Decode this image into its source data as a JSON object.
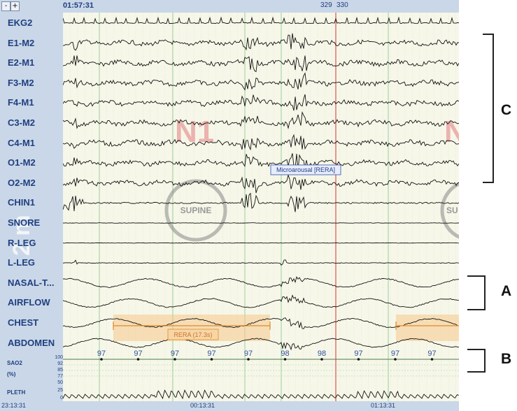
{
  "toolbar": {
    "minus_label": "-",
    "plus_label": "+",
    "start_time": "01:57:31",
    "epoch_a": "329",
    "epoch_b": "330"
  },
  "channels": [
    {
      "label": "EKG2",
      "kind": "ekg"
    },
    {
      "label": "E1-M2",
      "kind": "eeg"
    },
    {
      "label": "E2-M1",
      "kind": "eeg"
    },
    {
      "label": "F3-M2",
      "kind": "eeg"
    },
    {
      "label": "F4-M1",
      "kind": "eeg"
    },
    {
      "label": "C3-M2",
      "kind": "eeg"
    },
    {
      "label": "C4-M1",
      "kind": "eeg"
    },
    {
      "label": "O1-M2",
      "kind": "eeg"
    },
    {
      "label": "O2-M2",
      "kind": "eeg"
    },
    {
      "label": "CHIN1",
      "kind": "emg"
    },
    {
      "label": "SNORE",
      "kind": "flat"
    },
    {
      "label": "R-LEG",
      "kind": "flat"
    },
    {
      "label": "L-LEG",
      "kind": "leg"
    },
    {
      "label": "NASAL-T...",
      "kind": "resp"
    },
    {
      "label": "AIRFLOW",
      "kind": "resp"
    },
    {
      "label": "CHEST",
      "kind": "resp"
    },
    {
      "label": "ABDOMEN",
      "kind": "resp"
    }
  ],
  "sao2": {
    "label": "SAO2",
    "unit": "(%)",
    "scale": [
      "100",
      "92",
      "85",
      "77"
    ],
    "values": [
      "97",
      "97",
      "97",
      "97",
      "97",
      "98",
      "98",
      "97",
      "97",
      "97"
    ]
  },
  "pleth": {
    "label": "PLETH",
    "scale": [
      "50",
      "25",
      "0"
    ]
  },
  "watermark": {
    "page_text": "2 m"
  },
  "stages": [
    "N1",
    "N"
  ],
  "positions": [
    "SUPINE",
    "SU"
  ],
  "events": {
    "microarousal": "Microarousal [RERA]",
    "rera": "RERA (17.3s)"
  },
  "bottom_times": [
    "23:13:31",
    "00:13:31",
    "01:13:31"
  ],
  "annotations": {
    "c": "C",
    "a": "A",
    "b": "B"
  },
  "colors": {
    "panel_bg": "#c9d7e8",
    "plot_bg": "#f6f7e8",
    "label_text": "#1f3f7f",
    "stage_text": "#e8a0a0",
    "rera_band": "#f5c98a",
    "cursor_line": "#e05050",
    "grid_green": "#9ccf9c"
  }
}
